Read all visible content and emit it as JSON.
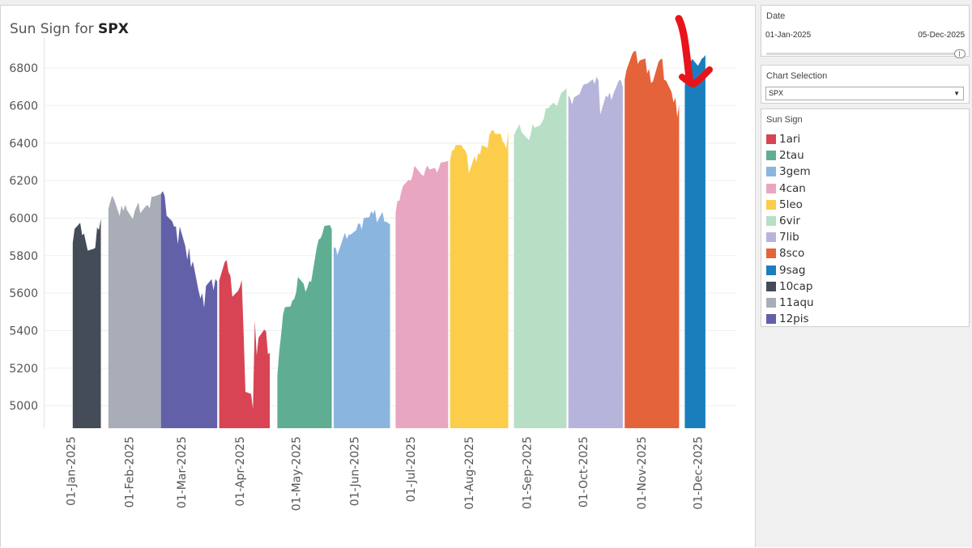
{
  "title_prefix": "Sun Sign for ",
  "title_symbol": "SPX",
  "filters": {
    "date_label": "Date",
    "date_start": "01-Jan-2025",
    "date_end": "05-Dec-2025",
    "chart_selection_label": "Chart Selection",
    "chart_selection_value": "SPX",
    "legend_title": "Sun Sign"
  },
  "legend": [
    {
      "label": "1ari",
      "color": "#d84454"
    },
    {
      "label": "2tau",
      "color": "#5fae94"
    },
    {
      "label": "3gem",
      "color": "#8ab5df"
    },
    {
      "label": "4can",
      "color": "#e9a6c1"
    },
    {
      "label": "5leo",
      "color": "#fccd4b"
    },
    {
      "label": "6vir",
      "color": "#b7dfc5"
    },
    {
      "label": "7lib",
      "color": "#b7b4db"
    },
    {
      "label": "8sco",
      "color": "#e4633b"
    },
    {
      "label": "9sag",
      "color": "#1a7ebd"
    },
    {
      "label": "10cap",
      "color": "#434c57"
    },
    {
      "label": "11aqu",
      "color": "#a8adb7"
    },
    {
      "label": "12pis",
      "color": "#6360aa"
    }
  ],
  "annotation_color": "#e8141a",
  "chart_data": {
    "type": "area",
    "title": "Sun Sign for SPX",
    "ylim": [
      4880,
      6960
    ],
    "y_ticks": [
      5000,
      5200,
      5400,
      5600,
      5800,
      6000,
      6200,
      6400,
      6600,
      6800
    ],
    "x_ticks": [
      "01-Jan-2025",
      "01-Feb-2025",
      "01-Mar-2025",
      "01-Apr-2025",
      "01-May-2025",
      "01-Jun-2025",
      "01-Jul-2025",
      "01-Aug-2025",
      "01-Sep-2025",
      "01-Oct-2025",
      "01-Nov-2025",
      "01-Dec-2025"
    ],
    "grid": true,
    "legend_position": "right",
    "series": [
      {
        "name": "10cap",
        "color": "#434c57",
        "points": [
          [
            "2025-01-02",
            5868
          ],
          [
            "2025-01-03",
            5942
          ],
          [
            "2025-01-06",
            5975
          ],
          [
            "2025-01-07",
            5909
          ],
          [
            "2025-01-08",
            5918
          ],
          [
            "2025-01-10",
            5827
          ],
          [
            "2025-01-13",
            5836
          ],
          [
            "2025-01-14",
            5842
          ],
          [
            "2025-01-15",
            5950
          ],
          [
            "2025-01-16",
            5937
          ],
          [
            "2025-01-17",
            5997
          ]
        ]
      },
      {
        "name": "11aqu",
        "color": "#a8adb7",
        "points": [
          [
            "2025-01-21",
            6049
          ],
          [
            "2025-01-22",
            6086
          ],
          [
            "2025-01-23",
            6119
          ],
          [
            "2025-01-24",
            6101
          ],
          [
            "2025-01-27",
            6012
          ],
          [
            "2025-01-28",
            6067
          ],
          [
            "2025-01-29",
            6039
          ],
          [
            "2025-01-30",
            6071
          ],
          [
            "2025-01-31",
            6041
          ],
          [
            "2025-02-03",
            5995
          ],
          [
            "2025-02-04",
            6037
          ],
          [
            "2025-02-05",
            6061
          ],
          [
            "2025-02-06",
            6084
          ],
          [
            "2025-02-07",
            6026
          ],
          [
            "2025-02-10",
            6066
          ],
          [
            "2025-02-11",
            6069
          ],
          [
            "2025-02-12",
            6052
          ],
          [
            "2025-02-13",
            6115
          ],
          [
            "2025-02-14",
            6114
          ],
          [
            "2025-02-18",
            6129
          ]
        ]
      },
      {
        "name": "12pis",
        "color": "#6360aa",
        "points": [
          [
            "2025-02-18",
            6129
          ],
          [
            "2025-02-19",
            6144
          ],
          [
            "2025-02-20",
            6117
          ],
          [
            "2025-02-21",
            6013
          ],
          [
            "2025-02-24",
            5983
          ],
          [
            "2025-02-25",
            5955
          ],
          [
            "2025-02-26",
            5956
          ],
          [
            "2025-02-27",
            5861
          ],
          [
            "2025-02-28",
            5955
          ],
          [
            "2025-03-03",
            5850
          ],
          [
            "2025-03-04",
            5778
          ],
          [
            "2025-03-05",
            5842
          ],
          [
            "2025-03-06",
            5738
          ],
          [
            "2025-03-07",
            5770
          ],
          [
            "2025-03-10",
            5614
          ],
          [
            "2025-03-11",
            5572
          ],
          [
            "2025-03-12",
            5599
          ],
          [
            "2025-03-13",
            5522
          ],
          [
            "2025-03-14",
            5638
          ],
          [
            "2025-03-17",
            5675
          ],
          [
            "2025-03-18",
            5615
          ],
          [
            "2025-03-19",
            5675
          ],
          [
            "2025-03-20",
            5663
          ]
        ]
      },
      {
        "name": "1ari",
        "color": "#d84454",
        "points": [
          [
            "2025-03-21",
            5667
          ],
          [
            "2025-03-24",
            5767
          ],
          [
            "2025-03-25",
            5776
          ],
          [
            "2025-03-26",
            5712
          ],
          [
            "2025-03-27",
            5693
          ],
          [
            "2025-03-28",
            5581
          ],
          [
            "2025-03-31",
            5611
          ],
          [
            "2025-04-01",
            5633
          ],
          [
            "2025-04-02",
            5671
          ],
          [
            "2025-04-03",
            5396
          ],
          [
            "2025-04-04",
            5074
          ],
          [
            "2025-04-07",
            5062
          ],
          [
            "2025-04-08",
            4982
          ],
          [
            "2025-04-09",
            5456
          ],
          [
            "2025-04-10",
            5268
          ],
          [
            "2025-04-11",
            5363
          ],
          [
            "2025-04-14",
            5406
          ],
          [
            "2025-04-15",
            5396
          ],
          [
            "2025-04-16",
            5275
          ],
          [
            "2025-04-17",
            5282
          ]
        ]
      },
      {
        "name": "2tau",
        "color": "#5fae94",
        "points": [
          [
            "2025-04-21",
            5158
          ],
          [
            "2025-04-22",
            5287
          ],
          [
            "2025-04-23",
            5376
          ],
          [
            "2025-04-24",
            5484
          ],
          [
            "2025-04-25",
            5525
          ],
          [
            "2025-04-28",
            5529
          ],
          [
            "2025-04-29",
            5560
          ],
          [
            "2025-04-30",
            5569
          ],
          [
            "2025-05-01",
            5604
          ],
          [
            "2025-05-02",
            5687
          ],
          [
            "2025-05-05",
            5650
          ],
          [
            "2025-05-06",
            5607
          ],
          [
            "2025-05-07",
            5631
          ],
          [
            "2025-05-08",
            5664
          ],
          [
            "2025-05-09",
            5660
          ],
          [
            "2025-05-12",
            5844
          ],
          [
            "2025-05-13",
            5886
          ],
          [
            "2025-05-14",
            5892
          ],
          [
            "2025-05-15",
            5916
          ],
          [
            "2025-05-16",
            5958
          ],
          [
            "2025-05-19",
            5963
          ],
          [
            "2025-05-20",
            5940
          ]
        ]
      },
      {
        "name": "3gem",
        "color": "#8ab5df",
        "points": [
          [
            "2025-05-21",
            5844
          ],
          [
            "2025-05-22",
            5842
          ],
          [
            "2025-05-23",
            5803
          ],
          [
            "2025-05-27",
            5922
          ],
          [
            "2025-05-28",
            5889
          ],
          [
            "2025-05-29",
            5912
          ],
          [
            "2025-05-30",
            5912
          ],
          [
            "2025-06-02",
            5936
          ],
          [
            "2025-06-03",
            5970
          ],
          [
            "2025-06-04",
            5971
          ],
          [
            "2025-06-05",
            5939
          ],
          [
            "2025-06-06",
            6000
          ],
          [
            "2025-06-09",
            6006
          ],
          [
            "2025-06-10",
            6038
          ],
          [
            "2025-06-11",
            6022
          ],
          [
            "2025-06-12",
            6045
          ],
          [
            "2025-06-13",
            5977
          ],
          [
            "2025-06-16",
            6033
          ],
          [
            "2025-06-17",
            5982
          ],
          [
            "2025-06-18",
            5981
          ],
          [
            "2025-06-20",
            5967
          ]
        ]
      },
      {
        "name": "4can",
        "color": "#e9a6c1",
        "points": [
          [
            "2025-06-23",
            6025
          ],
          [
            "2025-06-24",
            6092
          ],
          [
            "2025-06-25",
            6092
          ],
          [
            "2025-06-26",
            6141
          ],
          [
            "2025-06-27",
            6173
          ],
          [
            "2025-06-30",
            6205
          ],
          [
            "2025-07-01",
            6198
          ],
          [
            "2025-07-02",
            6227
          ],
          [
            "2025-07-03",
            6279
          ],
          [
            "2025-07-07",
            6230
          ],
          [
            "2025-07-08",
            6226
          ],
          [
            "2025-07-09",
            6263
          ],
          [
            "2025-07-10",
            6280
          ],
          [
            "2025-07-11",
            6259
          ],
          [
            "2025-07-14",
            6268
          ],
          [
            "2025-07-15",
            6243
          ],
          [
            "2025-07-16",
            6264
          ],
          [
            "2025-07-17",
            6297
          ],
          [
            "2025-07-18",
            6297
          ],
          [
            "2025-07-21",
            6305
          ]
        ]
      },
      {
        "name": "5leo",
        "color": "#fccd4b",
        "points": [
          [
            "2025-07-22",
            6309
          ],
          [
            "2025-07-23",
            6359
          ],
          [
            "2025-07-24",
            6363
          ],
          [
            "2025-07-25",
            6389
          ],
          [
            "2025-07-28",
            6390
          ],
          [
            "2025-07-29",
            6371
          ],
          [
            "2025-07-30",
            6362
          ],
          [
            "2025-07-31",
            6339
          ],
          [
            "2025-08-01",
            6238
          ],
          [
            "2025-08-04",
            6330
          ],
          [
            "2025-08-05",
            6299
          ],
          [
            "2025-08-06",
            6345
          ],
          [
            "2025-08-07",
            6340
          ],
          [
            "2025-08-08",
            6389
          ],
          [
            "2025-08-11",
            6374
          ],
          [
            "2025-08-12",
            6445
          ],
          [
            "2025-08-13",
            6466
          ],
          [
            "2025-08-14",
            6469
          ],
          [
            "2025-08-15",
            6449
          ],
          [
            "2025-08-18",
            6449
          ],
          [
            "2025-08-19",
            6411
          ],
          [
            "2025-08-20",
            6395
          ],
          [
            "2025-08-21",
            6370
          ],
          [
            "2025-08-22",
            6466
          ]
        ]
      },
      {
        "name": "6vir",
        "color": "#b7dfc5",
        "points": [
          [
            "2025-08-25",
            6439
          ],
          [
            "2025-08-26",
            6465
          ],
          [
            "2025-08-27",
            6481
          ],
          [
            "2025-08-28",
            6501
          ],
          [
            "2025-08-29",
            6460
          ],
          [
            "2025-09-02",
            6416
          ],
          [
            "2025-09-03",
            6448
          ],
          [
            "2025-09-04",
            6502
          ],
          [
            "2025-09-05",
            6482
          ],
          [
            "2025-09-08",
            6495
          ],
          [
            "2025-09-09",
            6512
          ],
          [
            "2025-09-10",
            6532
          ],
          [
            "2025-09-11",
            6587
          ],
          [
            "2025-09-12",
            6584
          ],
          [
            "2025-09-15",
            6615
          ],
          [
            "2025-09-16",
            6606
          ],
          [
            "2025-09-17",
            6600
          ],
          [
            "2025-09-18",
            6631
          ],
          [
            "2025-09-19",
            6664
          ],
          [
            "2025-09-22",
            6693
          ]
        ]
      },
      {
        "name": "7lib",
        "color": "#b7b4db",
        "points": [
          [
            "2025-09-23",
            6656
          ],
          [
            "2025-09-24",
            6637
          ],
          [
            "2025-09-25",
            6605
          ],
          [
            "2025-09-26",
            6644
          ],
          [
            "2025-09-29",
            6661
          ],
          [
            "2025-09-30",
            6688
          ],
          [
            "2025-10-01",
            6711
          ],
          [
            "2025-10-02",
            6715
          ],
          [
            "2025-10-03",
            6716
          ],
          [
            "2025-10-06",
            6740
          ],
          [
            "2025-10-07",
            6714
          ],
          [
            "2025-10-08",
            6753
          ],
          [
            "2025-10-09",
            6735
          ],
          [
            "2025-10-10",
            6552
          ],
          [
            "2025-10-13",
            6654
          ],
          [
            "2025-10-14",
            6644
          ],
          [
            "2025-10-15",
            6671
          ],
          [
            "2025-10-16",
            6629
          ],
          [
            "2025-10-17",
            6664
          ],
          [
            "2025-10-20",
            6735
          ],
          [
            "2025-10-21",
            6735
          ],
          [
            "2025-10-22",
            6699
          ]
        ]
      },
      {
        "name": "8sco",
        "color": "#e4633b",
        "points": [
          [
            "2025-10-23",
            6738
          ],
          [
            "2025-10-24",
            6791
          ],
          [
            "2025-10-27",
            6875
          ],
          [
            "2025-10-28",
            6890
          ],
          [
            "2025-10-29",
            6890
          ],
          [
            "2025-10-30",
            6822
          ],
          [
            "2025-10-31",
            6840
          ],
          [
            "2025-11-03",
            6851
          ],
          [
            "2025-11-04",
            6771
          ],
          [
            "2025-11-05",
            6796
          ],
          [
            "2025-11-06",
            6720
          ],
          [
            "2025-11-07",
            6728
          ],
          [
            "2025-11-10",
            6832
          ],
          [
            "2025-11-11",
            6846
          ],
          [
            "2025-11-12",
            6850
          ],
          [
            "2025-11-13",
            6737
          ],
          [
            "2025-11-14",
            6734
          ],
          [
            "2025-11-17",
            6672
          ],
          [
            "2025-11-18",
            6617
          ],
          [
            "2025-11-19",
            6642
          ],
          [
            "2025-11-20",
            6538
          ],
          [
            "2025-11-21",
            6603
          ]
        ]
      },
      {
        "name": "9sag",
        "color": "#1a7ebd",
        "points": [
          [
            "2025-11-24",
            6705
          ],
          [
            "2025-11-25",
            6766
          ],
          [
            "2025-11-26",
            6813
          ],
          [
            "2025-11-28",
            6849
          ],
          [
            "2025-12-01",
            6812
          ],
          [
            "2025-12-02",
            6829
          ],
          [
            "2025-12-03",
            6849
          ],
          [
            "2025-12-04",
            6857
          ],
          [
            "2025-12-05",
            6870
          ]
        ]
      }
    ]
  }
}
